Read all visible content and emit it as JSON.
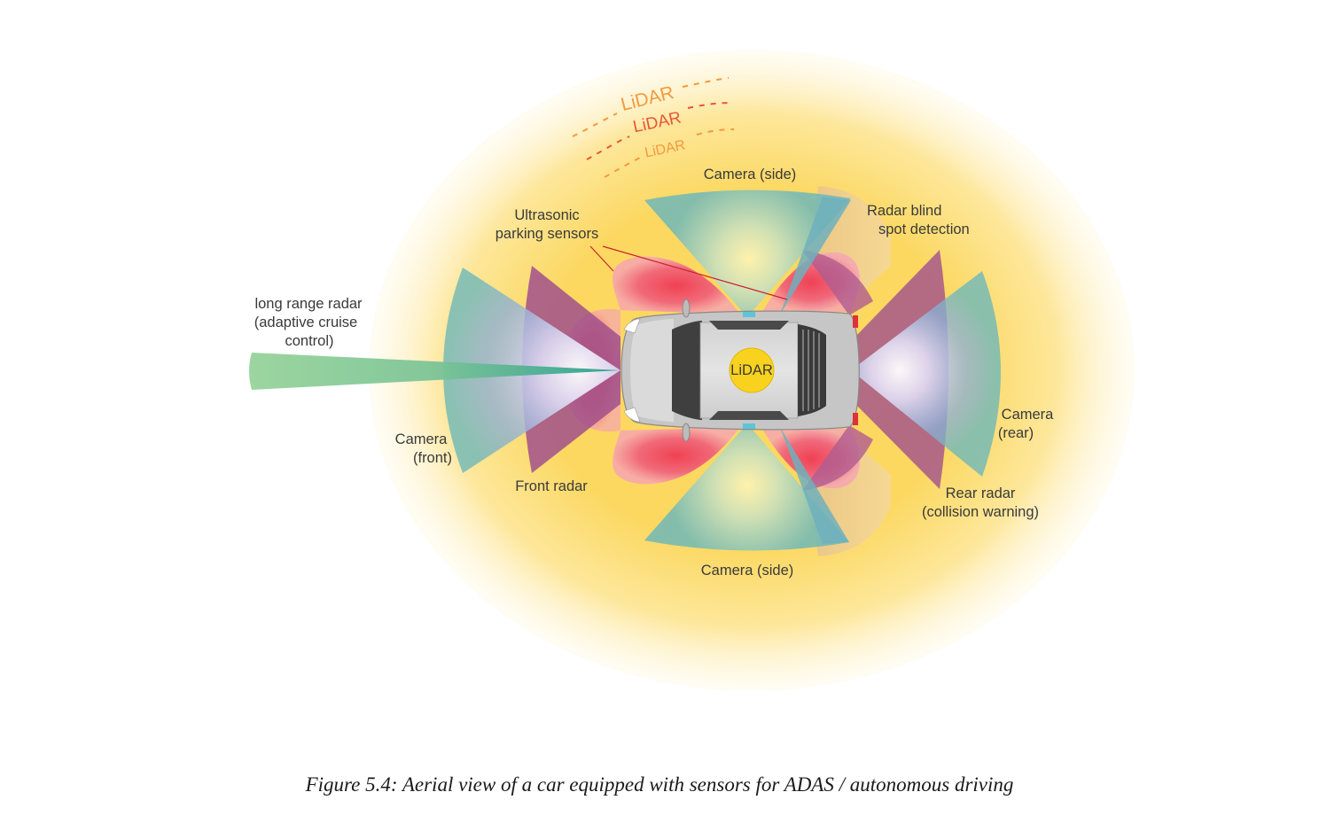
{
  "labels": {
    "lidar_wave_1": "LiDAR",
    "lidar_wave_2": "LiDAR",
    "lidar_wave_3": "LiDAR",
    "camera_side_top": "Camera (side)",
    "camera_side_bottom": "Camera (side)",
    "radar_blind_line1": "Radar blind",
    "radar_blind_line2": "spot detection",
    "ultrasonic_line1": "Ultrasonic",
    "ultrasonic_line2": "parking sensors",
    "long_range_line1": "long range radar",
    "long_range_line2": "(adaptive cruise",
    "long_range_line3": "control)",
    "camera_front_line1": "Camera",
    "camera_front_line2": "(front)",
    "front_radar": "Front radar",
    "camera_rear_line1": "Camera",
    "camera_rear_line2": "(rear)",
    "rear_radar_line1": "Rear radar",
    "rear_radar_line2": "(collision warning)",
    "car_lidar": "LiDAR"
  },
  "caption": "Figure 5.4:  Aerial view of a car equipped with sensors for ADAS / autonomous driving",
  "colors": {
    "lidar_halo": "#fbd25a",
    "camera": "#6fb8b8",
    "radar": "#a14f8a",
    "ultrasonic": "#ee5466",
    "long_range_radar": "#8fcf95",
    "lidar_orange": "#f39a3c",
    "lidar_red": "#e8553c",
    "car_body": "#c9c9c9"
  }
}
